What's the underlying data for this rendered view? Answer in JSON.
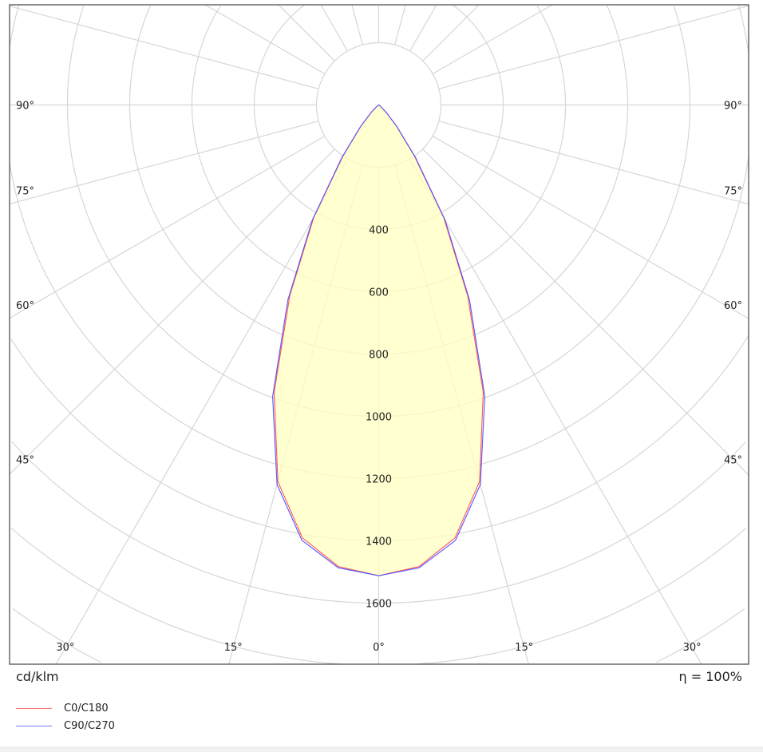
{
  "chart_data": {
    "type": "polar",
    "unit_label": "cd/klm",
    "efficiency_label": "η = 100%",
    "radial_ticks": [
      400,
      600,
      800,
      1000,
      1200,
      1400,
      1600
    ],
    "radial_grid_step": 200,
    "angle_grid_step_deg": 15,
    "angle_labels_bottom": [
      "30°",
      "15°",
      "0°",
      "15°",
      "30°"
    ],
    "angle_labels_side": [
      "90°",
      "75°",
      "60°",
      "45°"
    ],
    "grid": true,
    "fill_color": "#ffffc0",
    "gamma_deg": [
      0,
      5,
      10,
      15,
      20,
      25,
      30,
      35,
      40,
      45,
      50,
      55,
      60,
      90
    ],
    "series": [
      {
        "name": "C0/C180",
        "color": "#ff5555",
        "values": [
          1512,
          1488,
          1412,
          1252,
          982,
          676,
          418,
          200,
          88,
          35,
          10,
          0,
          0,
          0
        ]
      },
      {
        "name": "C90/C270",
        "color": "#5555ff",
        "values": [
          1512,
          1492,
          1420,
          1262,
          996,
          690,
          426,
          206,
          92,
          36,
          10,
          0,
          0,
          0
        ]
      }
    ]
  }
}
